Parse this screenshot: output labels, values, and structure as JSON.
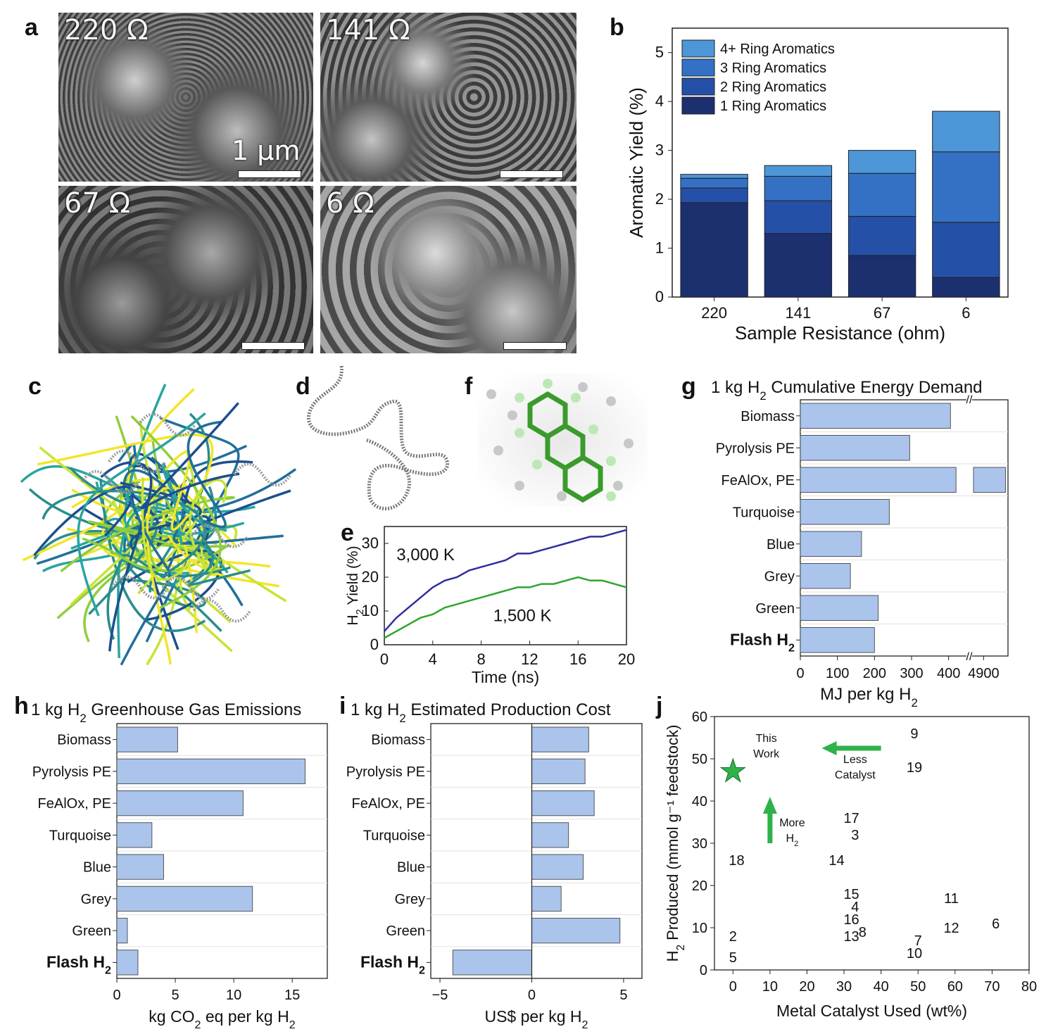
{
  "panels": {
    "a": "a",
    "b": "b",
    "c": "c",
    "d": "d",
    "e": "e",
    "f": "f",
    "g": "g",
    "h": "h",
    "i": "i",
    "j": "j"
  },
  "sem": {
    "labels": [
      "220 Ω",
      "141 Ω",
      "67 Ω",
      "6 Ω"
    ],
    "scale_label": "1 µm"
  },
  "chart_data": [
    {
      "id": "b",
      "type": "bar",
      "stacked": true,
      "categories": [
        "220",
        "141",
        "67",
        "6"
      ],
      "series": [
        {
          "name": "1 Ring Aromatics",
          "values": [
            1.93,
            1.3,
            0.85,
            0.4
          ],
          "color": "#1c2f6f"
        },
        {
          "name": "2 Ring Aromatics",
          "values": [
            0.3,
            0.67,
            0.8,
            1.13
          ],
          "color": "#2450a8"
        },
        {
          "name": "3 Ring Aromatics",
          "values": [
            0.2,
            0.5,
            0.88,
            1.44
          ],
          "color": "#3471c5"
        },
        {
          "name": "4+ Ring Aromatics",
          "values": [
            0.08,
            0.22,
            0.47,
            0.83
          ],
          "color": "#4d96d8"
        }
      ],
      "xlabel": "Sample Resistance (ohm)",
      "ylabel": "Aromatic Yield (%)",
      "ylim": [
        0,
        5.5
      ],
      "yticks": [
        "0",
        "1",
        "2",
        "3",
        "4",
        "5"
      ],
      "legend": "top-left"
    },
    {
      "id": "e",
      "type": "line",
      "x": [
        0,
        1,
        2,
        3,
        4,
        5,
        6,
        7,
        8,
        9,
        10,
        11,
        12,
        13,
        14,
        15,
        16,
        17,
        18,
        19,
        20
      ],
      "series": [
        {
          "name": "3,000 K",
          "values": [
            4,
            8,
            11,
            14,
            17,
            19,
            20,
            22,
            23,
            24,
            25,
            27,
            27,
            28,
            29,
            30,
            31,
            32,
            32,
            33,
            34
          ],
          "color": "#2e2f9a"
        },
        {
          "name": "1,500 K",
          "values": [
            2,
            4,
            6,
            8,
            9,
            11,
            12,
            13,
            14,
            15,
            16,
            17,
            17,
            18,
            18,
            19,
            20,
            19,
            19,
            18,
            17
          ],
          "color": "#2da62d"
        }
      ],
      "xlabel": "Time (ns)",
      "ylabel": "H₂ Yield (%)",
      "xlim": [
        0,
        20
      ],
      "ylim": [
        0,
        35
      ],
      "xticks": [
        "0",
        "4",
        "8",
        "12",
        "16",
        "20"
      ],
      "yticks": [
        "0",
        "10",
        "20",
        "30"
      ]
    },
    {
      "id": "g",
      "type": "bar",
      "orientation": "horizontal",
      "title": "1 kg H₂ Cumulative Energy Demand",
      "categories": [
        "Biomass",
        "Pyrolysis PE",
        "FeAlOx, PE",
        "Turquoise",
        "Blue",
        "Grey",
        "Green",
        "Flash H₂"
      ],
      "values": [
        405,
        295,
        4990,
        240,
        165,
        135,
        210,
        200
      ],
      "axis_break": [
        450,
        4850
      ],
      "xlabel": "MJ per kg H₂",
      "xticks": [
        "0",
        "100",
        "200",
        "300",
        "400",
        "4900"
      ],
      "color": "#aac4ec"
    },
    {
      "id": "h",
      "type": "bar",
      "orientation": "horizontal",
      "title": "1 kg H₂ Greenhouse Gas Emissions",
      "categories": [
        "Biomass",
        "Pyrolysis PE",
        "FeAlOx, PE",
        "Turquoise",
        "Blue",
        "Grey",
        "Green",
        "Flash H₂"
      ],
      "values": [
        5.2,
        16.1,
        10.8,
        3.0,
        4.0,
        11.6,
        0.9,
        1.8
      ],
      "xlabel": "kg CO₂ eq per kg H₂",
      "xlim": [
        0,
        18
      ],
      "xticks": [
        "0",
        "5",
        "10",
        "15"
      ],
      "color": "#aac4ec"
    },
    {
      "id": "i",
      "type": "bar",
      "orientation": "horizontal",
      "title": "1 kg H₂ Estimated Production Cost",
      "categories": [
        "Biomass",
        "Pyrolysis PE",
        "FeAlOx, PE",
        "Turquoise",
        "Blue",
        "Grey",
        "Green",
        "Flash H₂"
      ],
      "values": [
        3.1,
        2.9,
        3.4,
        2.0,
        2.8,
        1.6,
        4.8,
        -4.3
      ],
      "xlabel": "US$ per kg H₂",
      "xlim": [
        -5.5,
        6
      ],
      "xticks": [
        "−5",
        "0",
        "5"
      ],
      "color": "#aac4ec"
    },
    {
      "id": "j",
      "type": "scatter",
      "points": [
        {
          "label": "9",
          "x": 49,
          "y": 56
        },
        {
          "label": "19",
          "x": 49,
          "y": 48
        },
        {
          "label": "17",
          "x": 32,
          "y": 36
        },
        {
          "label": "3",
          "x": 33,
          "y": 32
        },
        {
          "label": "18",
          "x": 1,
          "y": 26
        },
        {
          "label": "14",
          "x": 28,
          "y": 26
        },
        {
          "label": "15",
          "x": 32,
          "y": 18
        },
        {
          "label": "11",
          "x": 59,
          "y": 17
        },
        {
          "label": "4",
          "x": 33,
          "y": 15
        },
        {
          "label": "16",
          "x": 32,
          "y": 12
        },
        {
          "label": "12",
          "x": 59,
          "y": 10
        },
        {
          "label": "6",
          "x": 71,
          "y": 11
        },
        {
          "label": "13",
          "x": 32,
          "y": 8
        },
        {
          "label": "8",
          "x": 35,
          "y": 9
        },
        {
          "label": "2",
          "x": 0,
          "y": 8
        },
        {
          "label": "7",
          "x": 50,
          "y": 7
        },
        {
          "label": "10",
          "x": 49,
          "y": 4
        },
        {
          "label": "5",
          "x": 0,
          "y": 3
        }
      ],
      "highlight": {
        "label": "This\nWork",
        "x": 0,
        "y": 47,
        "color": "#2db34a"
      },
      "annotations": [
        "Less\nCatalyst",
        "More\nH₂"
      ],
      "xlabel": "Metal Catalyst Used (wt%)",
      "ylabel": "H₂ Produced (mmol g⁻¹ feedstock)",
      "xlim": [
        -5,
        80
      ],
      "ylim": [
        0,
        60
      ],
      "xticks": [
        "0",
        "10",
        "20",
        "30",
        "40",
        "50",
        "60",
        "70",
        "80"
      ],
      "yticks": [
        "0",
        "10",
        "20",
        "30",
        "40",
        "50",
        "60"
      ]
    }
  ]
}
